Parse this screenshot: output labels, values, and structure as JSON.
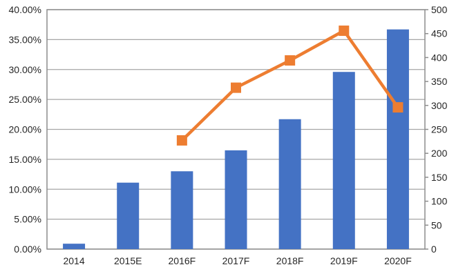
{
  "chart_data": {
    "type": "bar+line",
    "categories": [
      "2014",
      "2015E",
      "2016F",
      "2017F",
      "2018F",
      "2019F",
      "2020F"
    ],
    "series": [
      {
        "name": "bars",
        "type": "bar",
        "axis": "left",
        "color": "#4472C4",
        "values": [
          0.9,
          11.1,
          13.0,
          16.5,
          21.7,
          29.6,
          36.7
        ]
      },
      {
        "name": "line",
        "type": "line",
        "axis": "right",
        "color": "#ED7D31",
        "values": [
          null,
          null,
          227,
          337,
          394,
          456,
          296
        ]
      }
    ],
    "title": "",
    "xlabel": "",
    "ylabel": "",
    "left_axis": {
      "min": 0,
      "max": 40,
      "step": 5,
      "labels": [
        "0.00%",
        "5.00%",
        "10.00%",
        "15.00%",
        "20.00%",
        "25.00%",
        "30.00%",
        "35.00%",
        "40.00%"
      ]
    },
    "right_axis": {
      "min": 0,
      "max": 500,
      "step": 50,
      "labels": [
        "0",
        "50",
        "100",
        "150",
        "200",
        "250",
        "300",
        "350",
        "400",
        "450",
        "500"
      ]
    },
    "grid": true,
    "legend": false,
    "grid_color": "#A6A6A6",
    "border_color": "#8C8C8C",
    "text_color": "#262626",
    "background": "#FFFFFF"
  }
}
